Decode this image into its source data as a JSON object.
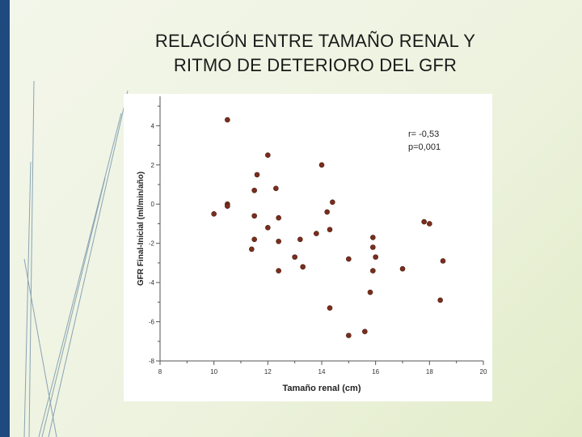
{
  "slide": {
    "title_line1": "RELACIÓN ENTRE TAMAÑO RENAL Y",
    "title_line2": "RITMO DE DETERIORO DEL GFR"
  },
  "colors": {
    "accent_bar": "#1f4a80",
    "point_fill": "#7a2e1c",
    "deco_lines": "#6f8fa8"
  },
  "chart_data": {
    "type": "scatter",
    "title": "",
    "xlabel": "Tamaño renal (cm)",
    "ylabel": "GFR Final-Inicial (ml/min/año)",
    "xlim": [
      8,
      20
    ],
    "ylim": [
      -8,
      5.5
    ],
    "xticks": [
      8,
      10,
      12,
      14,
      16,
      18,
      20
    ],
    "yticks": [
      -8,
      -6,
      -4,
      -2,
      0,
      2,
      4
    ],
    "grid": false,
    "annotations": [
      "r= -0,53",
      "p=0,001"
    ],
    "points": [
      [
        10.5,
        4.3
      ],
      [
        12.0,
        2.5
      ],
      [
        14.0,
        2.0
      ],
      [
        11.6,
        1.5
      ],
      [
        11.5,
        0.7
      ],
      [
        12.3,
        0.8
      ],
      [
        10.5,
        0.0
      ],
      [
        10.5,
        -0.1
      ],
      [
        10.0,
        -0.5
      ],
      [
        11.5,
        -0.6
      ],
      [
        12.4,
        -0.7
      ],
      [
        14.2,
        -0.4
      ],
      [
        14.4,
        0.1
      ],
      [
        12.0,
        -1.2
      ],
      [
        13.8,
        -1.5
      ],
      [
        14.3,
        -1.3
      ],
      [
        11.5,
        -1.8
      ],
      [
        12.4,
        -1.9
      ],
      [
        13.2,
        -1.8
      ],
      [
        11.4,
        -2.3
      ],
      [
        13.0,
        -2.7
      ],
      [
        13.3,
        -3.2
      ],
      [
        12.4,
        -3.4
      ],
      [
        15.9,
        -1.7
      ],
      [
        15.9,
        -2.2
      ],
      [
        16.0,
        -2.7
      ],
      [
        15.9,
        -3.4
      ],
      [
        15.0,
        -2.8
      ],
      [
        17.8,
        -0.9
      ],
      [
        18.0,
        -1.0
      ],
      [
        17.0,
        -3.3
      ],
      [
        18.5,
        -2.9
      ],
      [
        15.8,
        -4.5
      ],
      [
        18.4,
        -4.9
      ],
      [
        14.3,
        -5.3
      ],
      [
        15.0,
        -6.7
      ],
      [
        15.6,
        -6.5
      ]
    ]
  }
}
